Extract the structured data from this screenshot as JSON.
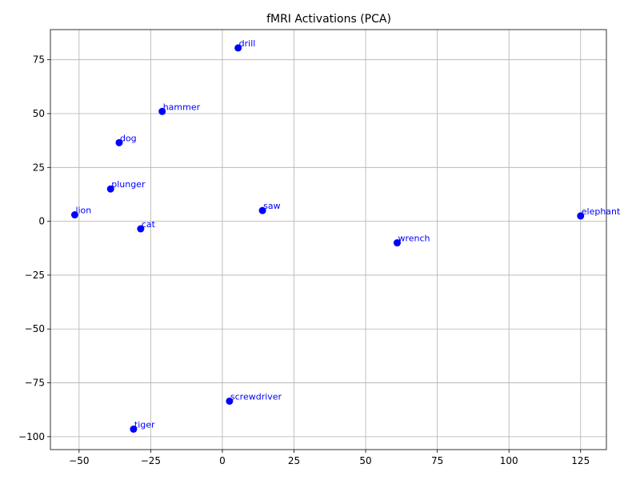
{
  "chart_data": {
    "type": "scatter",
    "title": "fMRI Activations (PCA)",
    "xlabel": "",
    "ylabel": "",
    "xlim": [
      -60,
      134
    ],
    "ylim": [
      -106,
      89
    ],
    "xticks": [
      -50,
      -25,
      0,
      25,
      50,
      75,
      100,
      125
    ],
    "yticks": [
      -100,
      -75,
      -50,
      -25,
      0,
      25,
      50,
      75
    ],
    "grid": true,
    "point_color": "#0000ff",
    "label_color": "#0000ff",
    "points": [
      {
        "label": "drill",
        "x": 5.5,
        "y": 80.5
      },
      {
        "label": "hammer",
        "x": -21,
        "y": 51
      },
      {
        "label": "dog",
        "x": -36,
        "y": 36.5
      },
      {
        "label": "plunger",
        "x": -39,
        "y": 15
      },
      {
        "label": "lion",
        "x": -51.5,
        "y": 3
      },
      {
        "label": "cat",
        "x": -28.5,
        "y": -3.5
      },
      {
        "label": "saw",
        "x": 14,
        "y": 5
      },
      {
        "label": "elephant",
        "x": 125,
        "y": 2.5
      },
      {
        "label": "wrench",
        "x": 61,
        "y": -10
      },
      {
        "label": "screwdriver",
        "x": 2.5,
        "y": -83.5
      },
      {
        "label": "tiger",
        "x": -31,
        "y": -96.5
      }
    ]
  }
}
